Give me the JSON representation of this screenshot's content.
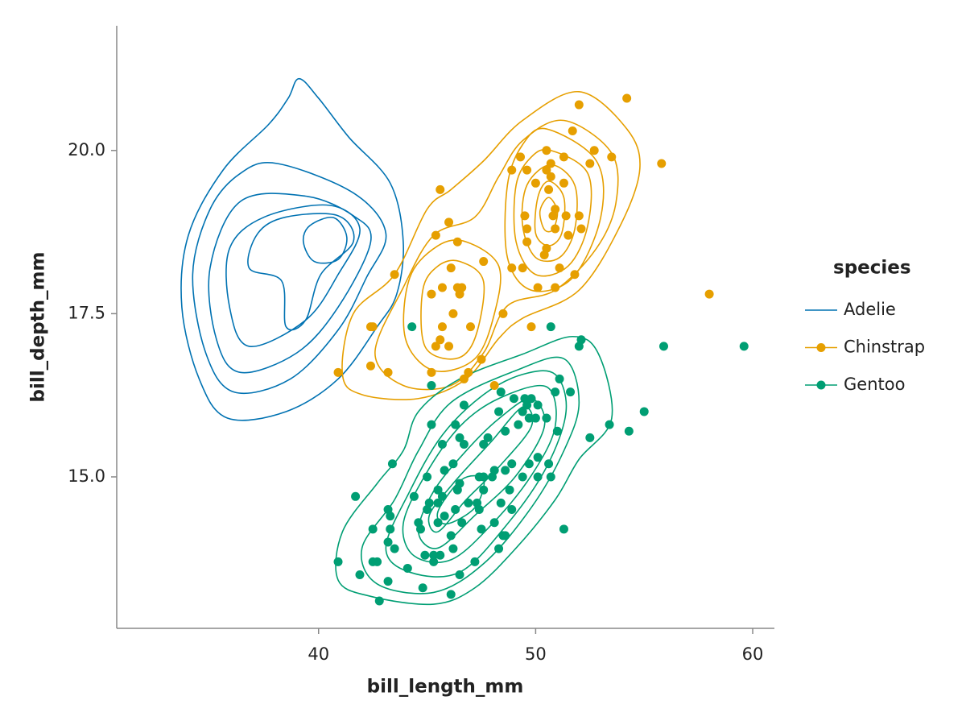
{
  "chart_data": {
    "type": "scatter",
    "x_label": "bill_length_mm",
    "y_label": "bill_depth_mm",
    "legend_title": "species",
    "xlim": [
      30.7,
      61.0
    ],
    "ylim": [
      12.68,
      21.91
    ],
    "xticks": [
      40,
      50,
      60
    ],
    "yticks": [
      {
        "value": 15,
        "label": "15.0"
      },
      {
        "value": 17.5,
        "label": "17.5"
      },
      {
        "value": 20,
        "label": "20.0"
      }
    ],
    "legend": "right",
    "series": [
      {
        "name": "Adelie",
        "color": "#0072b2",
        "x": [],
        "y": [],
        "contours": [
          {
            "x": [
              39.1,
              40.0,
              41.4,
              43.3,
              43.9,
              43.6,
              42.7,
              40.9,
              38.5,
              35.8,
              34.5,
              33.7,
              34.0,
              35.6,
              37.7,
              38.6
            ],
            "y": [
              21.1,
              20.8,
              20.2,
              19.5,
              18.6,
              17.8,
              17.3,
              16.5,
              16.0,
              15.9,
              16.5,
              17.6,
              18.7,
              19.7,
              20.4,
              20.8
            ]
          },
          {
            "x": [
              38.1,
              41.6,
              43.1,
              42.2,
              40.9,
              38.7,
              36.1,
              34.8,
              34.2,
              35.0,
              36.4
            ],
            "y": [
              19.8,
              19.35,
              18.73,
              18.05,
              17.25,
              16.5,
              16.3,
              16.9,
              18.1,
              19.1,
              19.65
            ]
          },
          {
            "x": [
              36.4,
              39.4,
              41.6,
              42.4,
              40.9,
              39.0,
              36.4,
              35.3,
              35.0
            ],
            "y": [
              19.22,
              19.3,
              19.0,
              18.6,
              17.6,
              16.9,
              16.6,
              17.1,
              18.2
            ]
          },
          {
            "x": [
              37.5,
              40.5,
              41.9,
              40.9,
              39.4,
              36.8,
              35.9,
              35.9
            ],
            "y": [
              18.98,
              19.16,
              18.8,
              18.1,
              17.4,
              17.0,
              17.6,
              18.5
            ]
          },
          {
            "x": [
              37.2,
              38.5,
              40.9,
              41.6,
              40.1,
              39.4,
              38.5,
              38.3,
              36.8
            ],
            "y": [
              18.73,
              18.98,
              19.0,
              18.6,
              18.1,
              17.4,
              17.3,
              18.0,
              18.2
            ]
          },
          {
            "x": [
              39.6,
              40.7,
              41.3,
              40.9,
              39.8,
              39.3
            ],
            "y": [
              18.85,
              18.97,
              18.67,
              18.33,
              18.3,
              18.6
            ]
          }
        ]
      },
      {
        "name": "Chinstrap",
        "color": "#e69f00",
        "x": [
          54.2,
          52.0,
          55.8,
          58.0,
          51.7,
          52.7,
          53.5,
          52.5,
          50.5,
          51.3,
          49.3,
          48.9,
          49.6,
          50.5,
          50.7,
          50.0,
          50.7,
          51.3,
          50.6,
          45.6,
          46.0,
          49.5,
          50.9,
          50.8,
          51.4,
          52.0,
          49.6,
          50.9,
          52.1,
          45.4,
          46.4,
          49.6,
          50.5,
          50.4,
          51.5,
          47.6,
          46.1,
          48.9,
          49.4,
          51.1,
          51.8,
          43.5,
          45.7,
          46.4,
          46.6,
          50.1,
          50.9,
          45.2,
          46.5,
          46.2,
          48.5,
          42.4,
          42.5,
          45.7,
          49.8,
          47.0,
          45.6,
          45.4,
          47.5,
          42.4,
          46.9,
          40.9,
          43.2,
          45.2,
          46.7,
          48.1,
          46.0
        ],
        "y": [
          20.8,
          20.7,
          19.8,
          17.8,
          20.3,
          20.0,
          19.9,
          19.8,
          20.0,
          19.9,
          19.9,
          19.7,
          19.7,
          19.7,
          19.8,
          19.5,
          19.6,
          19.5,
          19.4,
          19.4,
          18.9,
          19.0,
          19.1,
          19.0,
          19.0,
          19.0,
          18.8,
          18.8,
          18.8,
          18.7,
          18.6,
          18.6,
          18.5,
          18.4,
          18.7,
          18.3,
          18.2,
          18.2,
          18.2,
          18.2,
          18.1,
          18.1,
          17.9,
          17.9,
          17.9,
          17.9,
          17.9,
          17.8,
          17.8,
          17.5,
          17.5,
          17.3,
          17.3,
          17.3,
          17.3,
          17.3,
          17.1,
          17.0,
          16.8,
          16.7,
          16.6,
          16.6,
          16.6,
          16.6,
          16.5,
          16.4,
          17.0
        ],
        "contours": [
          {
            "x": [
              52.0,
              54.2,
              54.8,
              53.9,
              52.0,
              49.4,
              48.3,
              46.8,
              44.6,
              42.0,
              41.1,
              41.6,
              43.5,
              45.0,
              46.1,
              47.6,
              49.4
            ],
            "y": [
              20.9,
              20.33,
              19.72,
              18.85,
              17.86,
              17.43,
              17.12,
              16.5,
              16.2,
              16.26,
              16.57,
              17.5,
              18.1,
              19.1,
              19.4,
              19.84,
              20.46
            ]
          },
          {
            "x": [
              51.3,
              53.5,
              53.7,
              52.8,
              50.9,
              48.7,
              47.6,
              46.1,
              43.9,
              42.6,
              43.9,
              45.3,
              47.2,
              48.3,
              49.4
            ],
            "y": [
              20.46,
              19.96,
              19.2,
              18.5,
              17.86,
              17.62,
              16.9,
              16.4,
              16.4,
              16.9,
              17.9,
              18.7,
              18.98,
              19.6,
              20.15
            ]
          },
          {
            "x": [
              50.5,
              52.8,
              53.0,
              51.7,
              49.8,
              48.7,
              48.7,
              49.4
            ],
            "y": [
              20.33,
              19.84,
              18.98,
              18.05,
              17.86,
              18.36,
              19.47,
              20.09
            ]
          },
          {
            "x": [
              46.8,
              48.3,
              48.1,
              47.2,
              45.3,
              44.0,
              44.2,
              45.5
            ],
            "y": [
              18.6,
              18.23,
              17.5,
              16.81,
              16.63,
              17.12,
              18.05,
              18.54
            ]
          },
          {
            "x": [
              50.7,
              52.4,
              52.4,
              51.5,
              50.0,
              49.1,
              49.1,
              49.8
            ],
            "y": [
              20.0,
              19.65,
              18.85,
              18.23,
              18.1,
              18.6,
              19.47,
              19.9
            ]
          },
          {
            "x": [
              46.5,
              47.6,
              47.2,
              46.3,
              44.9,
              44.8,
              45.5
            ],
            "y": [
              18.3,
              17.99,
              17.12,
              16.81,
              17.0,
              17.86,
              18.23
            ]
          },
          {
            "x": [
              50.7,
              51.8,
              51.8,
              51.1,
              50.0,
              49.4,
              49.6
            ],
            "y": [
              19.78,
              19.47,
              18.79,
              18.36,
              18.36,
              18.85,
              19.47
            ]
          },
          {
            "x": [
              50.6,
              51.3,
              51.2,
              50.6,
              50.0,
              50.1
            ],
            "y": [
              19.53,
              19.28,
              18.73,
              18.54,
              18.73,
              19.28
            ]
          },
          {
            "x": [
              50.6,
              51.0,
              50.8,
              50.4,
              50.2
            ],
            "y": [
              19.28,
              19.07,
              18.79,
              18.79,
              19.07
            ]
          }
        ]
      },
      {
        "name": "Gentoo",
        "color": "#009e73",
        "x": [
          59.6,
          55.9,
          52.1,
          52.0,
          50.7,
          44.3,
          45.2,
          51.1,
          55.0,
          53.4,
          54.3,
          52.5,
          48.4,
          50.9,
          51.6,
          49.0,
          49.5,
          49.8,
          46.7,
          49.6,
          50.1,
          48.3,
          49.4,
          49.7,
          50.0,
          50.5,
          45.2,
          46.3,
          49.2,
          51.0,
          48.6,
          47.8,
          46.5,
          45.7,
          46.7,
          47.6,
          50.1,
          50.6,
          43.4,
          48.9,
          49.7,
          46.2,
          45.8,
          48.1,
          48.6,
          45.0,
          47.4,
          47.6,
          48.0,
          49.4,
          50.1,
          50.7,
          46.5,
          45.5,
          47.6,
          48.8,
          46.4,
          41.7,
          44.4,
          45.7,
          45.1,
          45.5,
          46.9,
          47.3,
          48.4,
          45.0,
          46.3,
          47.4,
          43.2,
          48.9,
          43.3,
          45.8,
          44.6,
          45.5,
          46.6,
          48.1,
          42.5,
          43.3,
          47.5,
          44.7,
          46.1,
          48.5,
          48.6,
          51.3,
          43.2,
          43.5,
          44.9,
          45.3,
          45.6,
          46.2,
          48.3,
          40.9,
          42.5,
          42.7,
          44.1,
          45.3,
          47.2,
          41.9,
          46.5,
          43.2,
          44.8,
          42.8,
          46.1
        ],
        "y": [
          17.0,
          17.0,
          17.1,
          17.0,
          17.3,
          17.3,
          16.4,
          16.5,
          16.0,
          15.8,
          15.7,
          15.6,
          16.3,
          16.3,
          16.3,
          16.2,
          16.2,
          16.2,
          16.1,
          16.1,
          16.1,
          16.0,
          16.0,
          15.9,
          15.9,
          15.9,
          15.8,
          15.8,
          15.8,
          15.7,
          15.7,
          15.6,
          15.6,
          15.5,
          15.5,
          15.5,
          15.3,
          15.2,
          15.2,
          15.2,
          15.2,
          15.2,
          15.1,
          15.1,
          15.1,
          15.0,
          15.0,
          15.0,
          15.0,
          15.0,
          15.0,
          15.0,
          14.9,
          14.8,
          14.8,
          14.8,
          14.8,
          14.7,
          14.7,
          14.7,
          14.6,
          14.6,
          14.6,
          14.6,
          14.6,
          14.5,
          14.5,
          14.5,
          14.5,
          14.5,
          14.4,
          14.4,
          14.3,
          14.3,
          14.3,
          14.3,
          14.2,
          14.2,
          14.2,
          14.2,
          14.1,
          14.1,
          14.1,
          14.2,
          14.0,
          13.9,
          13.8,
          13.8,
          13.8,
          13.9,
          13.9,
          13.7,
          13.7,
          13.7,
          13.6,
          13.7,
          13.7,
          13.5,
          13.5,
          13.4,
          13.3,
          13.1,
          13.2
        ],
        "contours": [
          {
            "x": [
              51.7,
              52.9,
              53.5,
              52.0,
              50.9,
              49.1,
              47.2,
              45.3,
              42.4,
              40.9,
              41.1,
              42.7,
              43.9,
              44.6,
              46.5,
              49.4
            ],
            "y": [
              17.15,
              16.88,
              15.89,
              15.27,
              14.65,
              13.91,
              13.3,
              13.05,
              13.17,
              13.42,
              14.16,
              14.9,
              15.4,
              16.0,
              16.5,
              16.88
            ]
          },
          {
            "x": [
              51.3,
              52.0,
              51.3,
              49.8,
              47.6,
              45.3,
              42.7,
              42.0,
              43.5,
              44.6,
              46.1,
              49.1
            ],
            "y": [
              16.81,
              16.14,
              15.4,
              14.53,
              13.67,
              13.23,
              13.36,
              13.91,
              14.65,
              15.4,
              16.14,
              16.63
            ]
          },
          {
            "x": [
              50.9,
              51.4,
              50.5,
              48.7,
              46.5,
              44.2,
              43.1,
              44.2,
              45.7,
              47.6,
              49.4
            ],
            "y": [
              16.57,
              16.0,
              15.15,
              14.28,
              13.54,
              13.54,
              13.91,
              14.78,
              15.64,
              16.26,
              16.57
            ]
          },
          {
            "x": [
              50.5,
              50.9,
              49.8,
              48.0,
              46.1,
              44.4,
              43.9,
              44.9,
              46.5,
              48.3
            ],
            "y": [
              16.38,
              15.77,
              15.02,
              14.28,
              13.73,
              13.79,
              14.28,
              15.02,
              15.77,
              16.2
            ]
          },
          {
            "x": [
              49.8,
              50.4,
              49.1,
              47.2,
              45.5,
              44.6,
              45.3,
              46.8,
              48.3
            ],
            "y": [
              16.2,
              15.77,
              15.02,
              14.41,
              13.91,
              14.16,
              14.78,
              15.4,
              15.89
            ]
          },
          {
            "x": [
              49.4,
              49.8,
              48.3,
              46.8,
              45.5,
              45.1,
              46.2,
              47.9
            ],
            "y": [
              16.07,
              15.77,
              15.15,
              14.65,
              14.16,
              14.41,
              14.9,
              15.52
            ]
          },
          {
            "x": [
              46.6,
              47.6,
              47.2,
              45.9,
              45.5
            ],
            "y": [
              14.96,
              14.96,
              14.53,
              14.28,
              14.47
            ]
          }
        ]
      }
    ]
  }
}
